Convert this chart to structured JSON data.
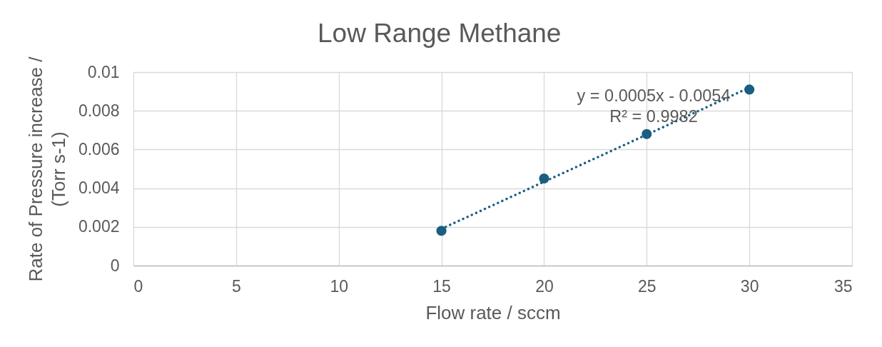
{
  "chart_data": {
    "type": "scatter",
    "title": "Low Range Methane",
    "xlabel": "Flow rate / sccm",
    "ylabel": "Rate of Pressure increase /\n(Torr s-1)",
    "xlim": [
      0,
      35
    ],
    "xticks": [
      0,
      5,
      10,
      15,
      20,
      25,
      30,
      35
    ],
    "ylim": [
      0,
      0.01
    ],
    "yticks": [
      0,
      0.002,
      0.004,
      0.006,
      0.008,
      0.01
    ],
    "grid": true,
    "series": [
      {
        "color": "#1a5e82",
        "marker": "circle",
        "x": [
          15,
          20,
          25,
          30
        ],
        "values": [
          0.0018,
          0.0045,
          0.0068,
          0.0091
        ]
      },
      {
        "type": "line",
        "color": "#1a5e82",
        "line_style": "dotted",
        "marker": "none",
        "x": [
          15,
          30
        ],
        "values": [
          0.0019,
          0.0092
        ]
      }
    ],
    "annotations": [
      "y = 0.0005x - 0.0054",
      "R² = 0.9982"
    ]
  }
}
